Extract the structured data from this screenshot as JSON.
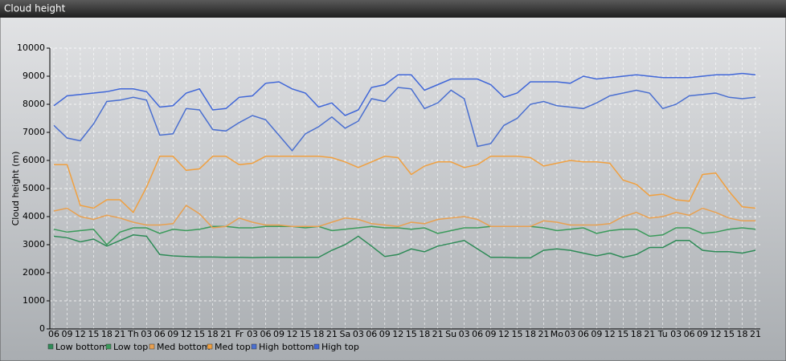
{
  "chart_data": {
    "type": "line",
    "title": "Cloud height",
    "y_label": "Cloud height (m)",
    "categories": [
      "06",
      "09",
      "12",
      "15",
      "18",
      "21",
      "Th",
      "03",
      "06",
      "09",
      "12",
      "15",
      "18",
      "21",
      "Fr",
      "03",
      "06",
      "09",
      "12",
      "15",
      "18",
      "21",
      "Sa",
      "03",
      "06",
      "09",
      "12",
      "15",
      "18",
      "21",
      "Su",
      "03",
      "06",
      "09",
      "12",
      "15",
      "18",
      "21",
      "Mo",
      "03",
      "06",
      "09",
      "12",
      "15",
      "18",
      "21",
      "Tu",
      "03",
      "06",
      "09",
      "12",
      "15",
      "18",
      "21"
    ],
    "ylim": [
      0,
      10000
    ],
    "yticks": [
      0,
      1000,
      2000,
      3000,
      4000,
      5000,
      6000,
      7000,
      8000,
      9000,
      10000
    ],
    "grid": true,
    "series": [
      {
        "name": "Low bottom",
        "color": "#2e8b57",
        "values": [
          3300,
          3250,
          3100,
          3200,
          2950,
          3150,
          3350,
          3300,
          2650,
          2600,
          2580,
          2560,
          2560,
          2550,
          2550,
          2540,
          2550,
          2550,
          2550,
          2550,
          2550,
          2800,
          3000,
          3300,
          2950,
          2580,
          2650,
          2850,
          2750,
          2950,
          3050,
          3150,
          2850,
          2550,
          2550,
          2530,
          2530,
          2800,
          2850,
          2800,
          2700,
          2600,
          2700,
          2550,
          2650,
          2900,
          2900,
          3150,
          3150,
          2800,
          2750,
          2750,
          2700,
          2800
        ]
      },
      {
        "name": "Low top",
        "color": "#3a9a5a",
        "values": [
          3550,
          3450,
          3500,
          3550,
          3000,
          3450,
          3600,
          3600,
          3400,
          3550,
          3500,
          3550,
          3650,
          3650,
          3600,
          3600,
          3650,
          3650,
          3650,
          3600,
          3650,
          3500,
          3550,
          3600,
          3650,
          3600,
          3600,
          3550,
          3600,
          3400,
          3500,
          3600,
          3600,
          3650,
          3650,
          3650,
          3650,
          3600,
          3500,
          3550,
          3600,
          3400,
          3500,
          3550,
          3550,
          3300,
          3350,
          3600,
          3600,
          3400,
          3450,
          3550,
          3600,
          3550
        ]
      },
      {
        "name": "Med bottom",
        "color": "#e8a050",
        "values": [
          4200,
          4300,
          4000,
          3900,
          4050,
          3950,
          3800,
          3700,
          3700,
          3750,
          4400,
          4100,
          3600,
          3650,
          3950,
          3800,
          3700,
          3700,
          3650,
          3650,
          3650,
          3800,
          3950,
          3900,
          3750,
          3700,
          3650,
          3800,
          3750,
          3900,
          3950,
          4000,
          3900,
          3650,
          3650,
          3650,
          3650,
          3850,
          3800,
          3700,
          3700,
          3700,
          3750,
          4000,
          4150,
          3950,
          4000,
          4150,
          4050,
          4300,
          4150,
          3950,
          3850,
          3850
        ]
      },
      {
        "name": "Med top",
        "color": "#f0a040",
        "values": [
          5850,
          5850,
          4400,
          4300,
          4600,
          4600,
          4150,
          5050,
          6150,
          6150,
          5650,
          5700,
          6150,
          6150,
          5850,
          5900,
          6150,
          6150,
          6150,
          6150,
          6150,
          6100,
          5950,
          5750,
          5950,
          6150,
          6100,
          5500,
          5800,
          5950,
          5950,
          5750,
          5850,
          6150,
          6150,
          6150,
          6100,
          5800,
          5900,
          6000,
          5950,
          5950,
          5900,
          5300,
          5150,
          4750,
          4800,
          4600,
          4550,
          5500,
          5550,
          4900,
          4350,
          4300
        ]
      },
      {
        "name": "High bottom",
        "color": "#4a6fd0",
        "values": [
          7250,
          6800,
          6700,
          7300,
          8100,
          8150,
          8250,
          8150,
          6900,
          6950,
          7850,
          7800,
          7100,
          7050,
          7350,
          7600,
          7450,
          6900,
          6350,
          6950,
          7200,
          7550,
          7150,
          7400,
          8200,
          8100,
          8600,
          8550,
          7850,
          8050,
          8500,
          8200,
          6500,
          6600,
          7250,
          7500,
          8000,
          8100,
          7950,
          7900,
          7850,
          8050,
          8300,
          8400,
          8500,
          8400,
          7850,
          8000,
          8300,
          8350,
          8400,
          8250,
          8200,
          8250
        ]
      },
      {
        "name": "High top",
        "color": "#3f66d8",
        "values": [
          7950,
          8300,
          8350,
          8400,
          8450,
          8550,
          8550,
          8450,
          7900,
          7950,
          8400,
          8550,
          7800,
          7850,
          8250,
          8300,
          8750,
          8800,
          8550,
          8400,
          7900,
          8050,
          7600,
          7800,
          8600,
          8700,
          9050,
          9050,
          8500,
          8700,
          8900,
          8900,
          8900,
          8700,
          8250,
          8400,
          8800,
          8800,
          8800,
          8750,
          9000,
          8900,
          8950,
          9000,
          9050,
          9000,
          8950,
          8950,
          8950,
          9000,
          9050,
          9050,
          9100,
          9050
        ]
      }
    ]
  }
}
